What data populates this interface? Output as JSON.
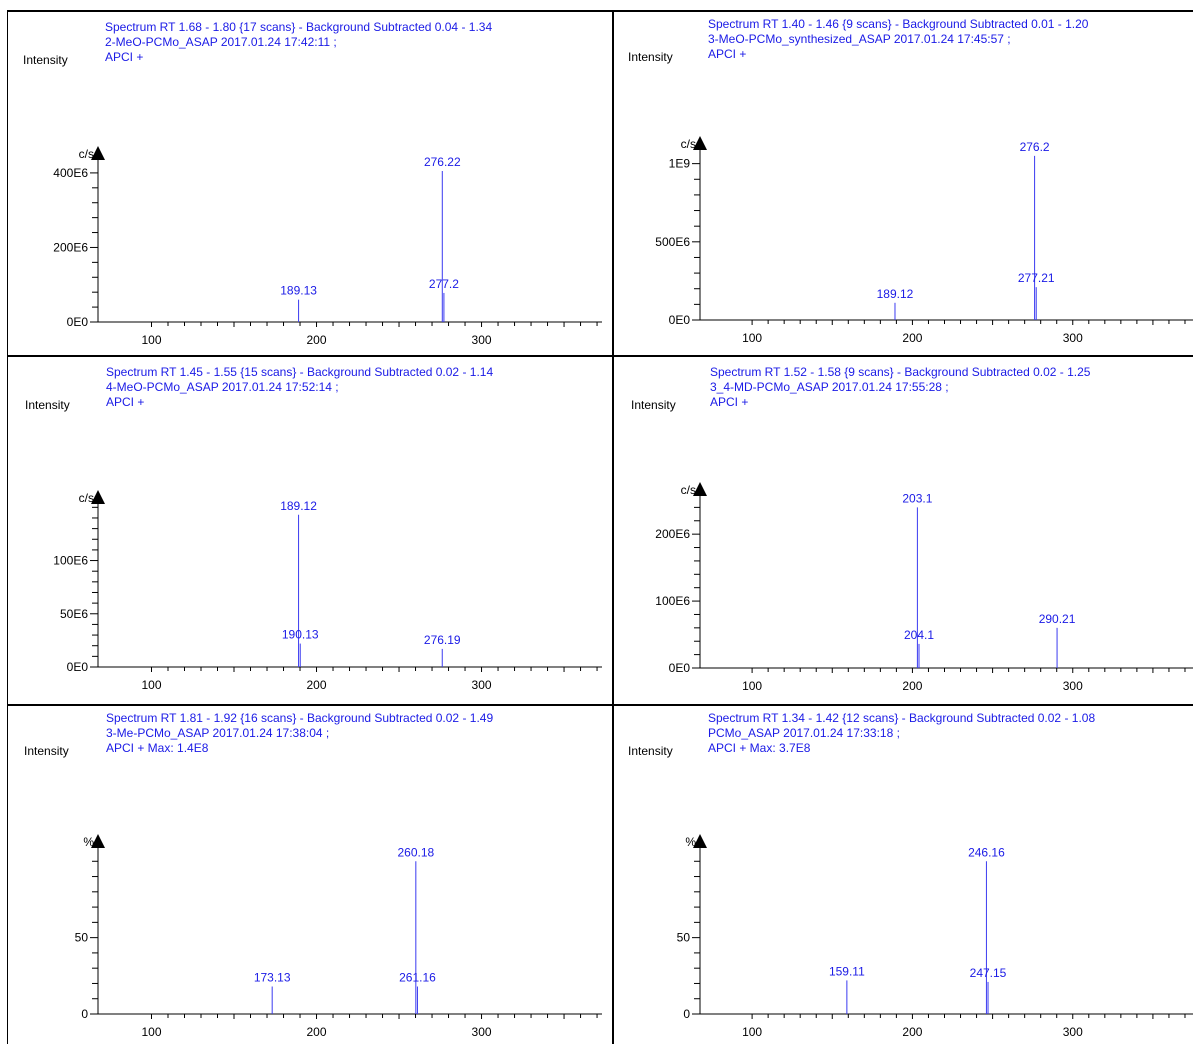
{
  "colors": {
    "header_text": "#1a1ae6",
    "peak": "#3a3af0",
    "axis": "#000000",
    "label": "#000000",
    "frame": "#000000"
  },
  "chart_data": [
    {
      "type": "bar",
      "header": [
        "Spectrum RT 1.68 - 1.80 {17 scans} - Background Subtracted 0.04 - 1.34",
        "2-MeO-PCMo_ASAP 2017.01.24 17:42:11 ;",
        "APCI +"
      ],
      "ylabel": "Intensity",
      "yunit": "c/s",
      "xlim": [
        70,
        373
      ],
      "ylim": [
        0,
        440000000
      ],
      "xticks": [
        100,
        200,
        300
      ],
      "yticks": [
        {
          "value": 0,
          "label": "0E0"
        },
        {
          "value": 200000000,
          "label": "200E6"
        },
        {
          "value": 400000000,
          "label": "400E6"
        }
      ],
      "peaks": [
        {
          "x": 189.13,
          "y": 60000000,
          "label": "189.13"
        },
        {
          "x": 276.22,
          "y": 405000000,
          "label": "276.22"
        },
        {
          "x": 277.2,
          "y": 78000000,
          "label": "277.2"
        }
      ]
    },
    {
      "type": "bar",
      "header": [
        "Spectrum RT 1.40 - 1.46 {9 scans} - Background Subtracted 0.01 - 1.20",
        "3-MeO-PCMo_synthesized_ASAP 2017.01.24 17:45:57 ;",
        "APCI +"
      ],
      "ylabel": "Intensity",
      "yunit": "c/s",
      "xlim": [
        70,
        375
      ],
      "ylim": [
        0,
        1100000000
      ],
      "xticks": [
        100,
        200,
        300
      ],
      "yticks": [
        {
          "value": 0,
          "label": "0E0"
        },
        {
          "value": 500000000,
          "label": "500E6"
        },
        {
          "value": 1000000000,
          "label": "1E9"
        }
      ],
      "peaks": [
        {
          "x": 189.12,
          "y": 110000000,
          "label": "189.12"
        },
        {
          "x": 276.2,
          "y": 1050000000,
          "label": "276.2"
        },
        {
          "x": 277.21,
          "y": 210000000,
          "label": "277.21"
        }
      ]
    },
    {
      "type": "bar",
      "header": [
        "Spectrum RT 1.45 - 1.55 {15 scans} - Background Subtracted 0.02 - 1.14",
        "4-MeO-PCMo_ASAP 2017.01.24 17:52:14 ;",
        "APCI +"
      ],
      "ylabel": "Intensity",
      "yunit": "c/s",
      "xlim": [
        70,
        373
      ],
      "ylim": [
        0,
        155000000
      ],
      "xticks": [
        100,
        200,
        300
      ],
      "yticks": [
        {
          "value": 0,
          "label": "0E0"
        },
        {
          "value": 50000000,
          "label": "50E6"
        },
        {
          "value": 100000000,
          "label": "100E6"
        }
      ],
      "peaks": [
        {
          "x": 189.12,
          "y": 143000000,
          "label": "189.12"
        },
        {
          "x": 190.13,
          "y": 22000000,
          "label": "190.13"
        },
        {
          "x": 276.19,
          "y": 17000000,
          "label": "276.19"
        }
      ]
    },
    {
      "type": "bar",
      "header": [
        "Spectrum RT 1.52 - 1.58 {9 scans} - Background Subtracted 0.02 - 1.25",
        "3_4-MD-PCMo_ASAP 2017.01.24 17:55:28 ;",
        "APCI +"
      ],
      "ylabel": "Intensity",
      "yunit": "c/s",
      "xlim": [
        70,
        375
      ],
      "ylim": [
        0,
        260000000
      ],
      "xticks": [
        100,
        200,
        300
      ],
      "yticks": [
        {
          "value": 0,
          "label": "0E0"
        },
        {
          "value": 100000000,
          "label": "100E6"
        },
        {
          "value": 200000000,
          "label": "200E6"
        }
      ],
      "peaks": [
        {
          "x": 203.1,
          "y": 240000000,
          "label": "203.1"
        },
        {
          "x": 204.1,
          "y": 36000000,
          "label": "204.1"
        },
        {
          "x": 290.21,
          "y": 60000000,
          "label": "290.21"
        }
      ]
    },
    {
      "type": "bar",
      "header": [
        "Spectrum RT 1.81 - 1.92 {16 scans} - Background Subtracted 0.02 - 1.49",
        "3-Me-PCMo_ASAP 2017.01.24 17:38:04 ;",
        "APCI + Max: 1.4E8"
      ],
      "ylabel": "Intensity",
      "yunit": "%",
      "xlim": [
        70,
        373
      ],
      "ylim": [
        0,
        110
      ],
      "xticks": [
        100,
        200,
        300
      ],
      "yticks": [
        {
          "value": 0,
          "label": "0"
        },
        {
          "value": 50,
          "label": "50"
        }
      ],
      "peaks": [
        {
          "x": 173.13,
          "y": 18,
          "label": "173.13"
        },
        {
          "x": 260.18,
          "y": 100,
          "label": "260.18"
        },
        {
          "x": 261.16,
          "y": 18,
          "label": "261.16"
        }
      ]
    },
    {
      "type": "bar",
      "header": [
        "Spectrum RT 1.34 - 1.42 {12 scans} - Background Subtracted 0.02 - 1.08",
        "PCMo_ASAP 2017.01.24 17:33:18 ;",
        "APCI + Max: 3.7E8"
      ],
      "ylabel": "Intensity",
      "yunit": "%",
      "xlim": [
        70,
        375
      ],
      "ylim": [
        0,
        110
      ],
      "xticks": [
        100,
        200,
        300
      ],
      "yticks": [
        {
          "value": 0,
          "label": "0"
        },
        {
          "value": 50,
          "label": "50"
        }
      ],
      "peaks": [
        {
          "x": 159.11,
          "y": 22,
          "label": "159.11"
        },
        {
          "x": 246.16,
          "y": 100,
          "label": "246.16"
        },
        {
          "x": 247.15,
          "y": 21,
          "label": "247.15"
        }
      ]
    }
  ]
}
